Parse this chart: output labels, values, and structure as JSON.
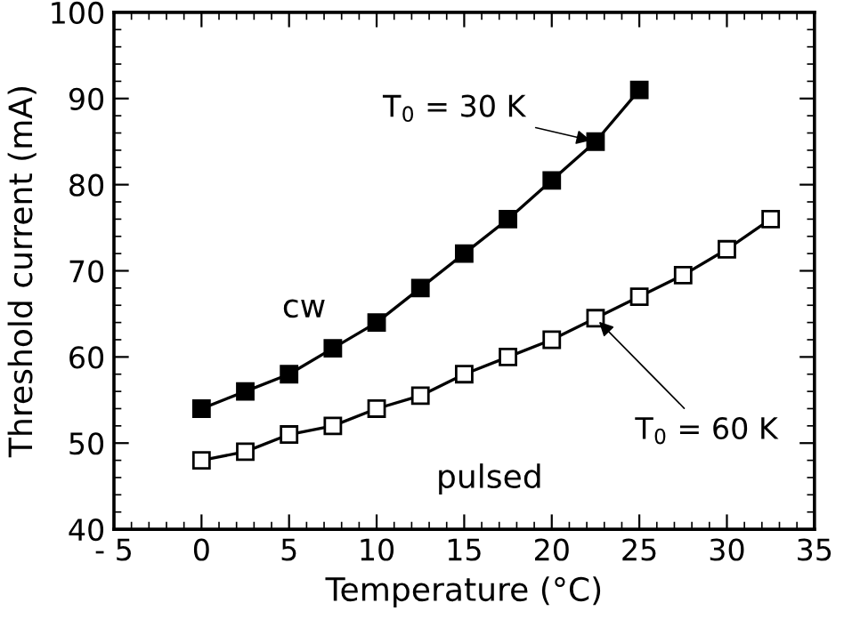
{
  "chart_data": {
    "type": "line",
    "xlabel": "Temperature (°C)",
    "ylabel": "Threshold current (mA)",
    "x": [
      0,
      2.5,
      5,
      7.5,
      10,
      12.5,
      15,
      17.5,
      20,
      22.5,
      25,
      27.5,
      30,
      32.5
    ],
    "series": [
      {
        "name": "cw",
        "color": "#000000",
        "marker": "square",
        "values": [
          54,
          56,
          58,
          61,
          64,
          68,
          72,
          76,
          80.5,
          85,
          91,
          null,
          null,
          null
        ]
      },
      {
        "name": "pulsed",
        "color": "#000000",
        "marker": "square",
        "values": [
          48,
          49,
          51,
          52,
          54,
          55.5,
          58,
          60,
          62,
          64.5,
          67,
          69.5,
          72.5,
          76
        ]
      }
    ],
    "xlim": [
      -5,
      35
    ],
    "xticks": [
      {
        "value": -5,
        "label": "- 5"
      },
      0,
      5,
      10,
      15,
      20,
      25,
      30,
      35
    ],
    "ylim": [
      40,
      100
    ],
    "yticks": [
      40,
      50,
      60,
      70,
      80,
      90,
      100
    ],
    "annotations": [
      {
        "text": "T$_{0}$ = 30 K",
        "x": 22.5,
        "y": 85
      },
      {
        "text": "T$_{0}$ = 60 K",
        "x": 22.5,
        "y": 64.5
      }
    ],
    "grid": false,
    "legend": false,
    "line_style": "solid"
  }
}
